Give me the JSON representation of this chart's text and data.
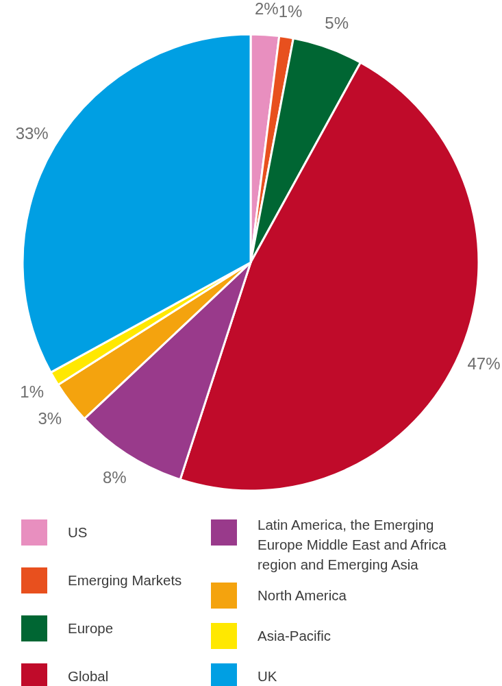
{
  "chart_data": {
    "type": "pie",
    "categories": [
      "US",
      "Emerging Markets",
      "Europe",
      "Global",
      "Latin America, the Emerging Europe Middle East and Africa region and Emerging Asia",
      "North America",
      "Asia-Pacific",
      "UK"
    ],
    "values": [
      2,
      1,
      5,
      47,
      8,
      3,
      1,
      33
    ],
    "colors": [
      "#e88fbf",
      "#e8501e",
      "#006633",
      "#c00b2a",
      "#993a8b",
      "#f4a30e",
      "#ffe800",
      "#009fe3"
    ],
    "value_labels": [
      "2%",
      "1%",
      "5%",
      "47%",
      "8%",
      "3%",
      "1%",
      "33%"
    ],
    "legend": "bottom"
  }
}
